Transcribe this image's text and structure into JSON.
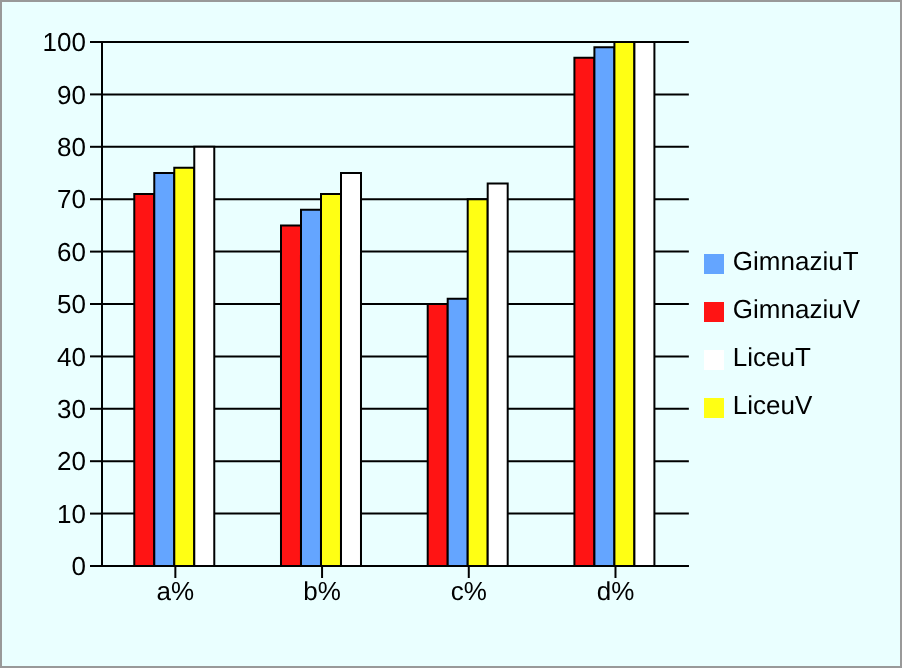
{
  "chart_data": {
    "type": "bar",
    "categories": [
      "a%",
      "b%",
      "c%",
      "d%"
    ],
    "series": [
      {
        "name": "GimnaziuV",
        "color": "#ff1414",
        "values": [
          71,
          65,
          50,
          97
        ]
      },
      {
        "name": "GimnaziuT",
        "color": "#64a5ff",
        "values": [
          75,
          68,
          51,
          99
        ]
      },
      {
        "name": "LiceuV",
        "color": "#ffff14",
        "values": [
          76,
          71,
          70,
          100
        ]
      },
      {
        "name": "LiceuT",
        "color": "#ffffff",
        "values": [
          80,
          75,
          73,
          100
        ]
      }
    ],
    "ylim": [
      0,
      100
    ],
    "yticks": [
      0,
      10,
      20,
      30,
      40,
      50,
      60,
      70,
      80,
      90,
      100
    ],
    "grid": "y",
    "legend": "right"
  }
}
